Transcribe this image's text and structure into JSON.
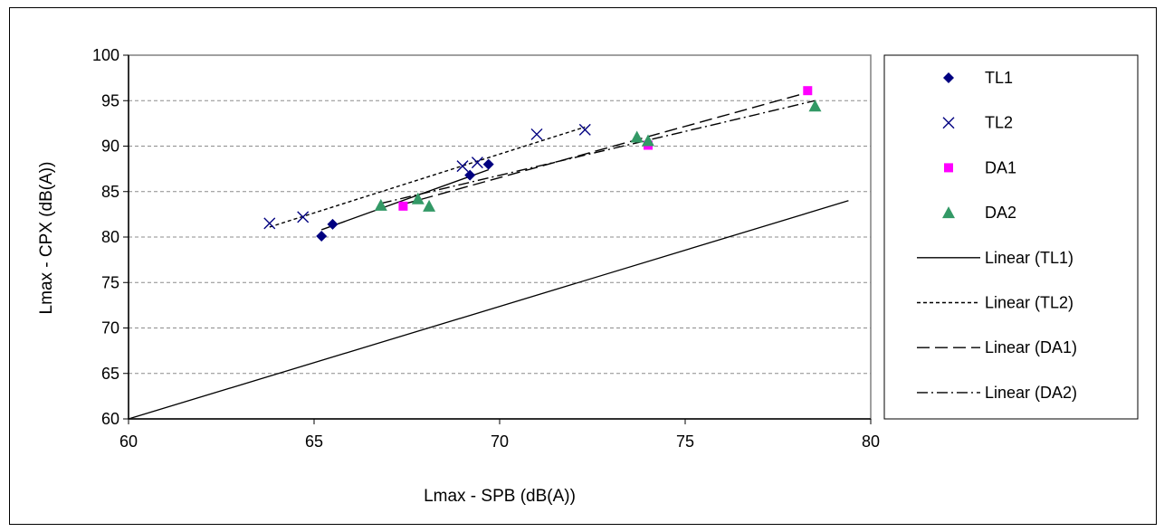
{
  "chart_data": {
    "type": "scatter",
    "xlabel": "Lmax - SPB (dB(A))",
    "ylabel": "Lmax - CPX (dB(A))",
    "xlim": [
      60,
      80
    ],
    "ylim": [
      60,
      100
    ],
    "xticks": [
      "60",
      "65",
      "70",
      "75",
      "80"
    ],
    "yticks": [
      "60",
      "65",
      "70",
      "75",
      "80",
      "85",
      "90",
      "95",
      "100"
    ],
    "grid": "horizontal-dashed",
    "legend_position": "right",
    "reference_line": {
      "x": [
        60,
        79.4
      ],
      "y": [
        60,
        84
      ]
    },
    "series": [
      {
        "name": "TL1",
        "marker": "diamond",
        "color": "#000080",
        "points": [
          [
            65.2,
            80.1
          ],
          [
            65.5,
            81.4
          ],
          [
            69.2,
            86.8
          ],
          [
            69.7,
            88.0
          ]
        ]
      },
      {
        "name": "TL2",
        "marker": "x",
        "color": "#000080",
        "points": [
          [
            63.8,
            81.5
          ],
          [
            64.7,
            82.2
          ],
          [
            69.0,
            87.8
          ],
          [
            69.4,
            88.2
          ],
          [
            71.0,
            91.3
          ],
          [
            72.3,
            91.8
          ]
        ]
      },
      {
        "name": "DA1",
        "marker": "square",
        "color": "#ff00ff",
        "points": [
          [
            67.4,
            83.4
          ],
          [
            74.0,
            90.1
          ],
          [
            78.3,
            96.1
          ]
        ]
      },
      {
        "name": "DA2",
        "marker": "triangle",
        "color": "#339966",
        "points": [
          [
            66.8,
            83.5
          ],
          [
            67.8,
            84.2
          ],
          [
            68.1,
            83.4
          ],
          [
            73.7,
            91.0
          ],
          [
            74.0,
            90.6
          ],
          [
            78.5,
            94.4
          ]
        ]
      }
    ],
    "trendlines": [
      {
        "name": "Linear (TL1)",
        "dash": "solid",
        "x": [
          65.2,
          69.7
        ],
        "y": [
          80.8,
          87.4
        ]
      },
      {
        "name": "Linear (TL2)",
        "dash": "short",
        "x": [
          63.8,
          72.3
        ],
        "y": [
          81.1,
          92.1
        ]
      },
      {
        "name": "Linear (DA1)",
        "dash": "long",
        "x": [
          67.4,
          78.3
        ],
        "y": [
          83.6,
          95.9
        ]
      },
      {
        "name": "Linear (DA2)",
        "dash": "dashdot",
        "x": [
          66.8,
          78.5
        ],
        "y": [
          83.7,
          95.0
        ]
      }
    ]
  }
}
